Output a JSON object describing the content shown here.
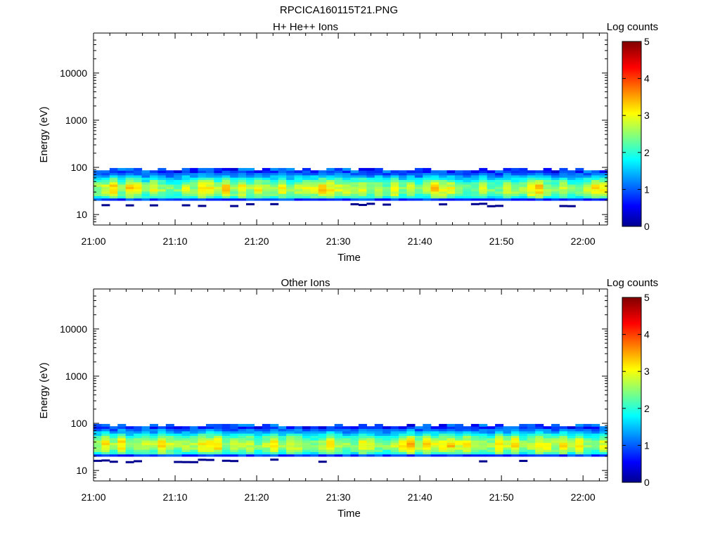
{
  "figure": {
    "title": "RPCICA160115T21.PNG"
  },
  "chart_data": [
    {
      "type": "heatmap",
      "title": "H+ He++ Ions",
      "xlabel": "Time",
      "ylabel": "Energy (eV)",
      "y_scale": "log",
      "ylim": [
        6,
        50000
      ],
      "xlim": [
        "21:00",
        "22:03"
      ],
      "x_ticks": [
        "21:00",
        "21:10",
        "21:20",
        "21:30",
        "21:40",
        "21:50",
        "22:00"
      ],
      "y_ticks": [
        "10",
        "100",
        "1000",
        "10000"
      ],
      "colorbar": {
        "label": "Log counts",
        "range": [
          0,
          5
        ],
        "ticks": [
          "0",
          "1",
          "2",
          "3",
          "4",
          "5"
        ],
        "colormap": "jet"
      },
      "energy_band_eV": [
        20,
        97
      ],
      "peak_band_eV": [
        28,
        45
      ],
      "typical_log_counts_peak": 3.0,
      "max_log_counts": 3.6,
      "seed": 7
    },
    {
      "type": "heatmap",
      "title": "Other Ions",
      "xlabel": "Time",
      "ylabel": "Energy (eV)",
      "y_scale": "log",
      "ylim": [
        6,
        50000
      ],
      "xlim": [
        "21:00",
        "22:03"
      ],
      "x_ticks": [
        "21:00",
        "21:10",
        "21:20",
        "21:30",
        "21:40",
        "21:50",
        "22:00"
      ],
      "y_ticks": [
        "10",
        "100",
        "1000",
        "10000"
      ],
      "colorbar": {
        "label": "Log counts",
        "range": [
          0,
          5
        ],
        "ticks": [
          "0",
          "1",
          "2",
          "3",
          "4",
          "5"
        ],
        "colormap": "jet"
      },
      "energy_band_eV": [
        20,
        97
      ],
      "peak_band_eV": [
        28,
        45
      ],
      "typical_log_counts_peak": 3.1,
      "max_log_counts": 3.7,
      "seed": 19
    }
  ]
}
